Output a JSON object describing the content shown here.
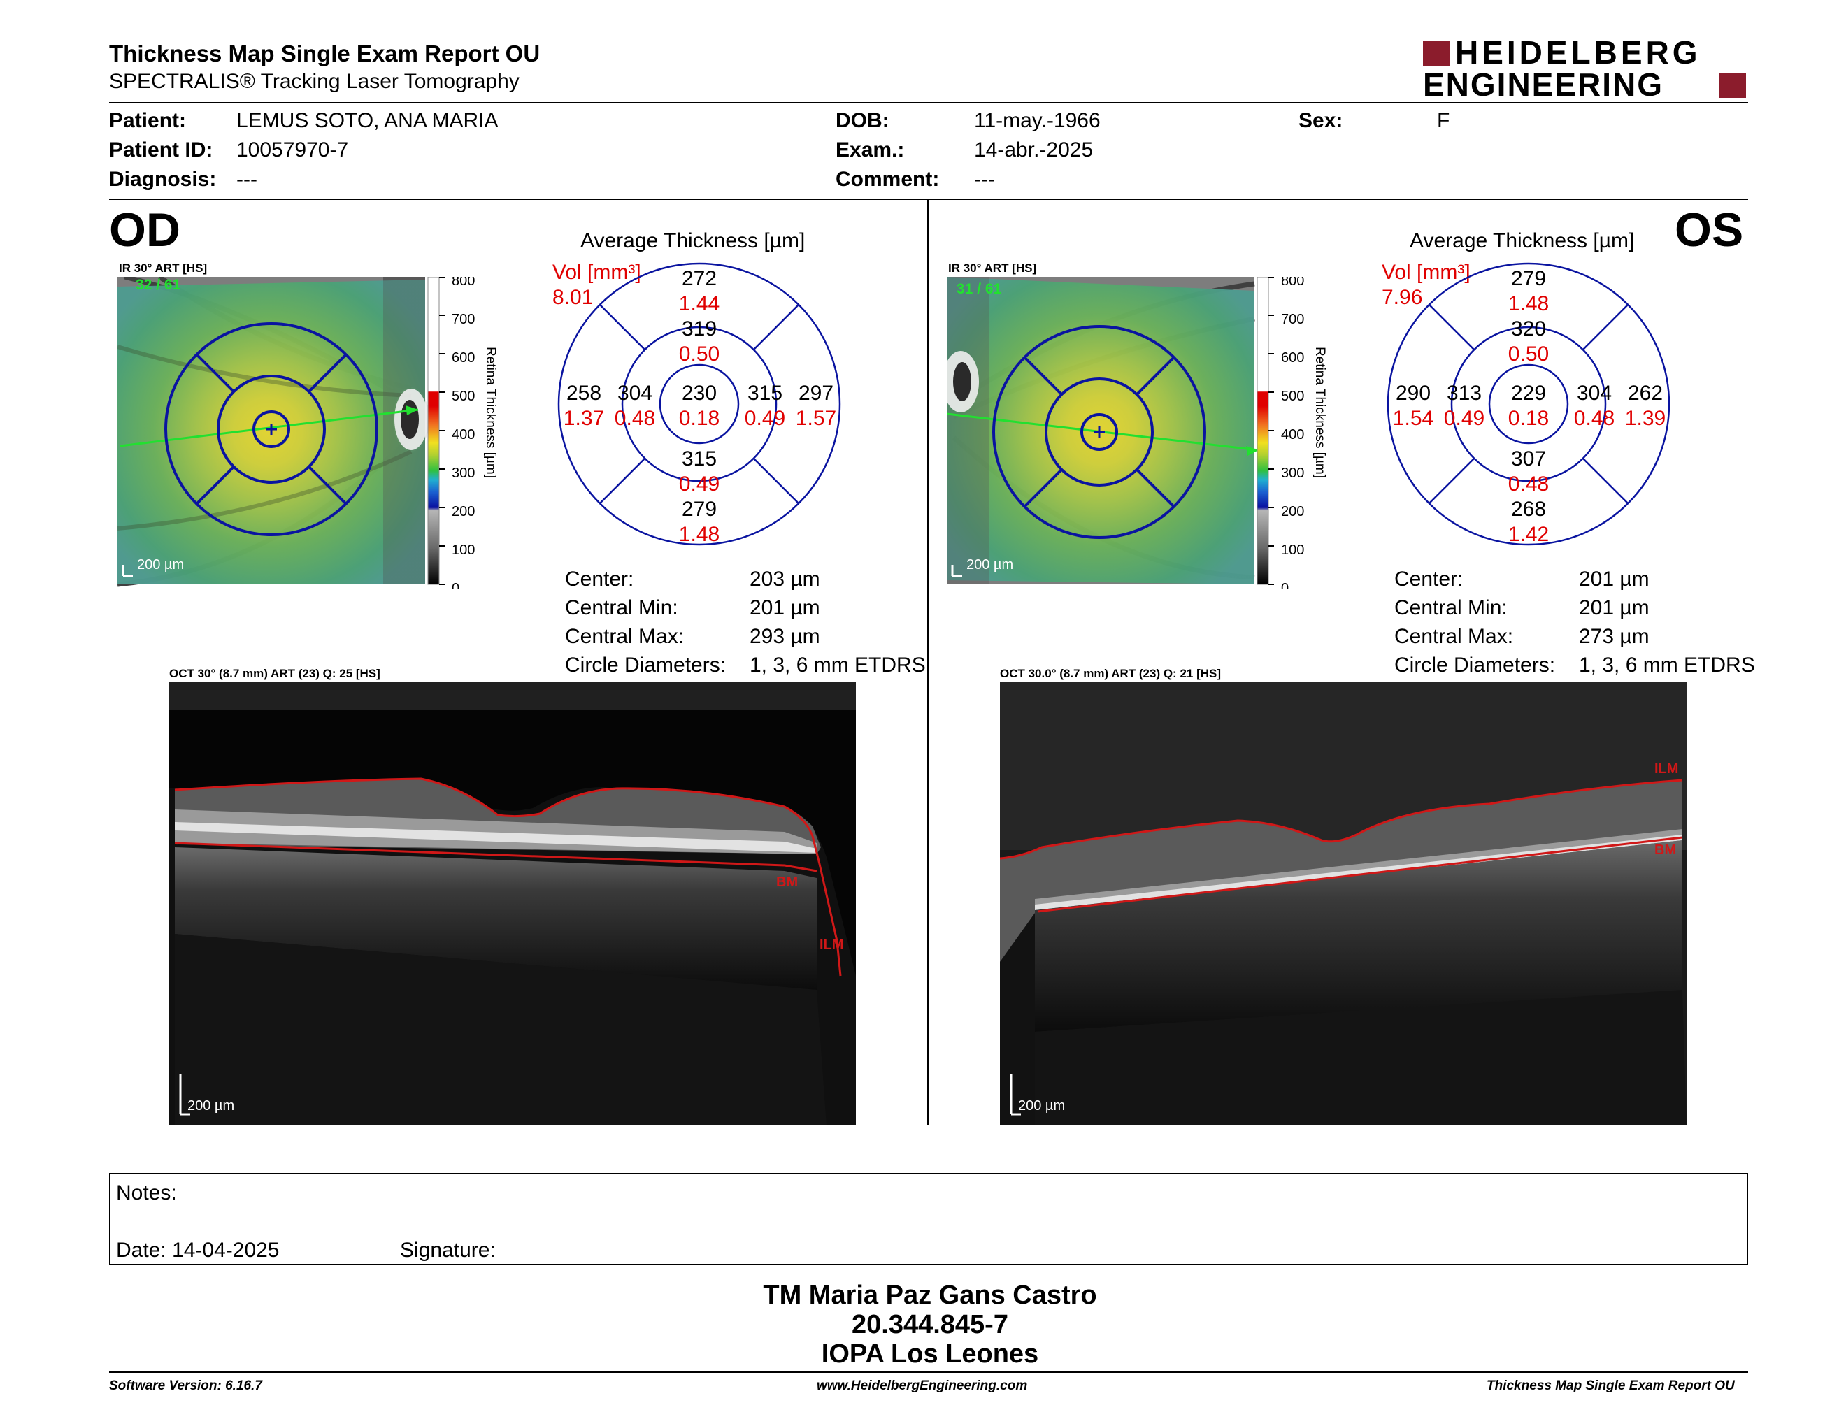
{
  "report": {
    "title": "Thickness Map Single Exam Report OU",
    "subtitle": "SPECTRALIS® Tracking Laser Tomography",
    "brand_line1": "HEIDELBERG",
    "brand_line2": "ENGINEERING",
    "brand_color": "#8B1C2C"
  },
  "patient": {
    "patient_label": "Patient:",
    "patient_value": "LEMUS SOTO, ANA MARIA",
    "id_label": "Patient ID:",
    "id_value": "10057970-7",
    "diag_label": "Diagnosis:",
    "diag_value": "---",
    "dob_label": "DOB:",
    "dob_value": "11-may.-1966",
    "exam_label": "Exam.:",
    "exam_value": "14-abr.-2025",
    "comment_label": "Comment:",
    "comment_value": "---",
    "sex_label": "Sex:",
    "sex_value": "F"
  },
  "colorbar": {
    "ticks": [
      "800",
      "700",
      "600",
      "500",
      "400",
      "300",
      "200",
      "100",
      "0"
    ],
    "label": "Retina Thickness [µm]"
  },
  "od": {
    "eye": "OD",
    "ir_title": "IR 30° ART [HS]",
    "ir_counter": "32 / 61",
    "scale": "200 µm",
    "avg_title": "Average Thickness [µm]",
    "vol_label": "Vol [mm³]",
    "vol_value": "8.01",
    "sectors": {
      "outer_sup": {
        "t": "272",
        "v": "1.44"
      },
      "inner_sup": {
        "t": "319",
        "v": "0.50"
      },
      "outer_temp": {
        "t": "258",
        "v": "1.37"
      },
      "inner_temp": {
        "t": "304",
        "v": "0.48"
      },
      "center": {
        "t": "230",
        "v": "0.18"
      },
      "inner_nas": {
        "t": "315",
        "v": "0.49"
      },
      "outer_nas": {
        "t": "297",
        "v": "1.57"
      },
      "inner_inf": {
        "t": "315",
        "v": "0.49"
      },
      "outer_inf": {
        "t": "279",
        "v": "1.48"
      }
    },
    "stats": {
      "center_label": "Center:",
      "center_value": "203 µm",
      "min_label": "Central Min:",
      "min_value": "201 µm",
      "max_label": "Central Max:",
      "max_value": "293 µm",
      "diam_label": "Circle Diameters:",
      "diam_value": "1, 3, 6 mm ETDRS"
    },
    "oct_title": "OCT 30° (8.7 mm) ART (23) Q: 25 [HS]",
    "oct_labels": {
      "bm": "BM",
      "ilm": "ILM"
    },
    "oct_scale": "200 µm"
  },
  "os": {
    "eye": "OS",
    "ir_title": "IR 30° ART [HS]",
    "ir_counter": "31 / 61",
    "scale": "200 µm",
    "avg_title": "Average Thickness [µm]",
    "vol_label": "Vol [mm³]",
    "vol_value": "7.96",
    "sectors": {
      "outer_sup": {
        "t": "279",
        "v": "1.48"
      },
      "inner_sup": {
        "t": "320",
        "v": "0.50"
      },
      "outer_temp": {
        "t": "290",
        "v": "1.54"
      },
      "inner_temp": {
        "t": "313",
        "v": "0.49"
      },
      "center": {
        "t": "229",
        "v": "0.18"
      },
      "inner_nas": {
        "t": "304",
        "v": "0.48"
      },
      "outer_nas": {
        "t": "262",
        "v": "1.39"
      },
      "inner_inf": {
        "t": "307",
        "v": "0.48"
      },
      "outer_inf": {
        "t": "268",
        "v": "1.42"
      }
    },
    "stats": {
      "center_label": "Center:",
      "center_value": "201 µm",
      "min_label": "Central Min:",
      "min_value": "201 µm",
      "max_label": "Central Max:",
      "max_value": "273 µm",
      "diam_label": "Circle Diameters:",
      "diam_value": "1, 3, 6 mm ETDRS"
    },
    "oct_title": "OCT 30.0° (8.7 mm) ART (23) Q: 21 [HS]",
    "oct_labels": {
      "bm": "BM",
      "ilm": "ILM"
    },
    "oct_scale": "200 µm"
  },
  "notes": {
    "notes_label": "Notes:",
    "date_label": "Date: 14-04-2025",
    "signature_label": "Signature:"
  },
  "signer": {
    "name": "TM Maria Paz Gans Castro",
    "rut": "20.344.845-7",
    "place": "IOPA Los Leones"
  },
  "footer": {
    "software": "Software Version: 6.16.7",
    "website": "www.HeidelbergEngineering.com",
    "report_name": "Thickness Map Single Exam Report OU"
  },
  "colors": {
    "volume_red": "#E00000",
    "grid_blue": "#0A14A0",
    "scan_green": "#22E030",
    "layer_red": "#D01818"
  }
}
